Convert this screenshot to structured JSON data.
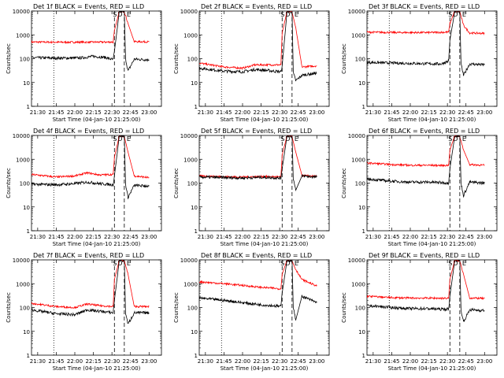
{
  "chart_data": [
    {
      "type": "line",
      "title": "Det 1f BLACK = Events, RED = LLD",
      "xlabel": "Start Time (04-Jan-10 21:25:00)",
      "ylabel": "Counts/sec",
      "yscale": "log",
      "ylim": [
        1,
        10000
      ],
      "x_ticks": [
        "21:30",
        "21:45",
        "22:00",
        "22:15",
        "22:30",
        "22:45",
        "23:00"
      ],
      "y_ticks": [
        "1",
        "10",
        "100",
        "1000",
        "10000"
      ],
      "grid": false,
      "markers": {
        "dotted_time": "21:43",
        "dashed_times": [
          "22:32",
          "22:40"
        ],
        "letters": [
          "S",
          "D",
          "E"
        ]
      },
      "series": [
        {
          "name": "Events",
          "color": "#000000",
          "x": [
            "21:25",
            "21:50",
            "22:05",
            "22:15",
            "22:25",
            "22:31",
            "22:32",
            "22:36",
            "22:40",
            "22:41",
            "22:43",
            "22:48",
            "23:00"
          ],
          "y": [
            110,
            105,
            108,
            125,
            112,
            90,
            200,
            10000,
            9000,
            100,
            30,
            95,
            90
          ]
        },
        {
          "name": "LLD",
          "color": "#ff0000",
          "x": [
            "21:25",
            "21:50",
            "22:15",
            "22:31",
            "22:32",
            "22:36",
            "22:40",
            "22:43",
            "22:48",
            "23:00"
          ],
          "y": [
            500,
            490,
            495,
            500,
            1500,
            10000,
            9500,
            3000,
            520,
            510
          ]
        }
      ]
    },
    {
      "type": "line",
      "title": "Det 2f BLACK = Events, RED = LLD",
      "xlabel": "Start Time (04-Jan-10 21:25:00)",
      "ylabel": "Counts/sec",
      "yscale": "log",
      "ylim": [
        1,
        10000
      ],
      "x_ticks": [
        "21:30",
        "21:45",
        "22:00",
        "22:15",
        "22:30",
        "22:45",
        "23:00"
      ],
      "y_ticks": [
        "1",
        "10",
        "100",
        "1000",
        "10000"
      ],
      "grid": false,
      "markers": {
        "dotted_time": "21:43",
        "dashed_times": [
          "22:32",
          "22:40"
        ],
        "letters": [
          "S",
          "D",
          "E"
        ]
      },
      "series": [
        {
          "name": "Events",
          "color": "#000000",
          "x": [
            "21:25",
            "21:45",
            "22:00",
            "22:10",
            "22:20",
            "22:31",
            "22:32",
            "22:36",
            "22:40",
            "22:41",
            "22:43",
            "22:48",
            "23:00"
          ],
          "y": [
            40,
            30,
            28,
            35,
            32,
            28,
            50,
            10000,
            9000,
            25,
            12,
            20,
            25
          ]
        },
        {
          "name": "LLD",
          "color": "#ff0000",
          "x": [
            "21:25",
            "21:45",
            "22:00",
            "22:10",
            "22:20",
            "22:31",
            "22:32",
            "22:36",
            "22:40",
            "22:43",
            "22:48",
            "23:00"
          ],
          "y": [
            65,
            45,
            40,
            55,
            55,
            55,
            1200,
            10000,
            9000,
            2000,
            45,
            50
          ]
        }
      ]
    },
    {
      "type": "line",
      "title": "Det 3f BLACK = Events, RED = LLD",
      "xlabel": "Start Time (04-Jan-10 21:25:00)",
      "ylabel": "Counts/sec",
      "yscale": "log",
      "ylim": [
        1,
        10000
      ],
      "x_ticks": [
        "21:30",
        "21:45",
        "22:00",
        "22:15",
        "22:30",
        "22:45",
        "23:00"
      ],
      "y_ticks": [
        "1",
        "10",
        "100",
        "1000",
        "10000"
      ],
      "grid": false,
      "markers": {
        "dotted_time": "21:43",
        "dashed_times": [
          "22:32",
          "22:40"
        ],
        "letters": [
          "S",
          "D",
          "E"
        ]
      },
      "series": [
        {
          "name": "Events",
          "color": "#000000",
          "x": [
            "21:25",
            "21:50",
            "22:10",
            "22:25",
            "22:31",
            "22:32",
            "22:36",
            "22:40",
            "22:41",
            "22:43",
            "22:48",
            "23:00"
          ],
          "y": [
            70,
            65,
            62,
            60,
            80,
            600,
            10000,
            9000,
            60,
            20,
            60,
            55
          ]
        },
        {
          "name": "LLD",
          "color": "#ff0000",
          "x": [
            "21:25",
            "21:50",
            "22:15",
            "22:31",
            "22:32",
            "22:36",
            "22:40",
            "22:43",
            "22:48",
            "23:00"
          ],
          "y": [
            1300,
            1250,
            1250,
            1300,
            3000,
            10000,
            9500,
            2500,
            1200,
            1150
          ]
        }
      ]
    },
    {
      "type": "line",
      "title": "Det 4f BLACK = Events, RED = LLD",
      "xlabel": "Start Time (04-Jan-10 21:25:00)",
      "ylabel": "Counts/sec",
      "yscale": "log",
      "ylim": [
        1,
        10000
      ],
      "x_ticks": [
        "21:30",
        "21:45",
        "22:00",
        "22:15",
        "22:30",
        "22:45",
        "23:00"
      ],
      "y_ticks": [
        "1",
        "10",
        "100",
        "1000",
        "10000"
      ],
      "grid": false,
      "markers": {
        "dotted_time": "21:43",
        "dashed_times": [
          "22:32",
          "22:40"
        ],
        "letters": [
          "S",
          "D",
          "E"
        ]
      },
      "series": [
        {
          "name": "Events",
          "color": "#000000",
          "x": [
            "21:25",
            "21:45",
            "22:00",
            "22:10",
            "22:20",
            "22:31",
            "22:32",
            "22:36",
            "22:40",
            "22:41",
            "22:43",
            "22:48",
            "23:00"
          ],
          "y": [
            90,
            85,
            95,
            110,
            95,
            85,
            200,
            10000,
            9000,
            90,
            25,
            80,
            75
          ]
        },
        {
          "name": "LLD",
          "color": "#ff0000",
          "x": [
            "21:25",
            "21:45",
            "22:00",
            "22:10",
            "22:20",
            "22:31",
            "22:32",
            "22:36",
            "22:40",
            "22:43",
            "22:48",
            "23:00"
          ],
          "y": [
            230,
            180,
            200,
            270,
            220,
            230,
            1200,
            10000,
            9000,
            2000,
            200,
            170
          ]
        }
      ]
    },
    {
      "type": "line",
      "title": "Det 5f BLACK = Events, RED = LLD",
      "xlabel": "Start Time (04-Jan-10 21:25:00)",
      "ylabel": "Counts/sec",
      "yscale": "log",
      "ylim": [
        1,
        10000
      ],
      "x_ticks": [
        "21:30",
        "21:45",
        "22:00",
        "22:15",
        "22:30",
        "22:45",
        "23:00"
      ],
      "y_ticks": [
        "1",
        "10",
        "100",
        "1000",
        "10000"
      ],
      "grid": false,
      "markers": {
        "dotted_time": "21:43",
        "dashed_times": [
          "22:32",
          "22:40"
        ],
        "letters": [
          "S",
          "D",
          "E"
        ]
      },
      "series": [
        {
          "name": "Events",
          "color": "#000000",
          "x": [
            "21:25",
            "21:45",
            "22:00",
            "22:15",
            "22:25",
            "22:31",
            "22:32",
            "22:36",
            "22:40",
            "22:41",
            "22:43",
            "22:48",
            "23:00"
          ],
          "y": [
            180,
            170,
            165,
            175,
            170,
            160,
            400,
            10000,
            9000,
            150,
            50,
            200,
            180
          ]
        },
        {
          "name": "LLD",
          "color": "#ff0000",
          "x": [
            "21:25",
            "21:45",
            "22:00",
            "22:15",
            "22:25",
            "22:31",
            "22:32",
            "22:36",
            "22:40",
            "22:43",
            "22:48",
            "23:00"
          ],
          "y": [
            200,
            185,
            180,
            190,
            185,
            180,
            1500,
            10000,
            9000,
            2000,
            210,
            190
          ]
        }
      ]
    },
    {
      "type": "line",
      "title": "Det 6f BLACK = Events, RED = LLD",
      "xlabel": "Start Time (04-Jan-10 21:25:00)",
      "ylabel": "Counts/sec",
      "yscale": "log",
      "ylim": [
        1,
        10000
      ],
      "x_ticks": [
        "21:30",
        "21:45",
        "22:00",
        "22:15",
        "22:30",
        "22:45",
        "23:00"
      ],
      "y_ticks": [
        "1",
        "10",
        "100",
        "1000",
        "10000"
      ],
      "grid": false,
      "markers": {
        "dotted_time": "21:43",
        "dashed_times": [
          "22:32",
          "22:40"
        ],
        "letters": [
          "S",
          "D",
          "E"
        ]
      },
      "series": [
        {
          "name": "Events",
          "color": "#000000",
          "x": [
            "21:25",
            "21:45",
            "22:00",
            "22:15",
            "22:25",
            "22:31",
            "22:32",
            "22:36",
            "22:40",
            "22:41",
            "22:43",
            "22:48",
            "23:00"
          ],
          "y": [
            150,
            120,
            110,
            110,
            105,
            100,
            400,
            10000,
            9000,
            100,
            30,
            110,
            100
          ]
        },
        {
          "name": "LLD",
          "color": "#ff0000",
          "x": [
            "21:25",
            "21:45",
            "22:00",
            "22:15",
            "22:25",
            "22:31",
            "22:32",
            "22:36",
            "22:40",
            "22:43",
            "22:48",
            "23:00"
          ],
          "y": [
            700,
            600,
            560,
            560,
            550,
            560,
            2500,
            10000,
            9000,
            2500,
            600,
            560
          ]
        }
      ]
    },
    {
      "type": "line",
      "title": "Det 7f BLACK = Events, RED = LLD",
      "xlabel": "Start Time (04-Jan-10 21:25:00)",
      "ylabel": "Counts/sec",
      "yscale": "log",
      "ylim": [
        1,
        10000
      ],
      "x_ticks": [
        "21:30",
        "21:45",
        "22:00",
        "22:15",
        "22:30",
        "22:45",
        "23:00"
      ],
      "y_ticks": [
        "1",
        "10",
        "100",
        "1000",
        "10000"
      ],
      "grid": false,
      "markers": {
        "dotted_time": "21:43",
        "dashed_times": [
          "22:32",
          "22:40"
        ],
        "letters": [
          "S",
          "D",
          "E"
        ]
      },
      "series": [
        {
          "name": "Events",
          "color": "#000000",
          "x": [
            "21:25",
            "21:45",
            "22:00",
            "22:10",
            "22:20",
            "22:31",
            "22:32",
            "22:36",
            "22:40",
            "22:41",
            "22:43",
            "22:48",
            "23:00"
          ],
          "y": [
            80,
            55,
            50,
            80,
            70,
            60,
            200,
            10000,
            9000,
            60,
            20,
            60,
            60
          ]
        },
        {
          "name": "LLD",
          "color": "#ff0000",
          "x": [
            "21:25",
            "21:45",
            "22:00",
            "22:10",
            "22:20",
            "22:31",
            "22:32",
            "22:36",
            "22:40",
            "22:43",
            "22:48",
            "23:00"
          ],
          "y": [
            150,
            110,
            100,
            140,
            120,
            110,
            1500,
            10000,
            9000,
            2500,
            110,
            110
          ]
        }
      ]
    },
    {
      "type": "line",
      "title": "Det 8f BLACK = Events, RED = LLD",
      "xlabel": "Start Time (04-Jan-10 21:25:00)",
      "ylabel": "Counts/sec",
      "yscale": "log",
      "ylim": [
        1,
        10000
      ],
      "x_ticks": [
        "21:30",
        "21:45",
        "22:00",
        "22:15",
        "22:30",
        "22:45",
        "23:00"
      ],
      "y_ticks": [
        "1",
        "10",
        "100",
        "1000",
        "10000"
      ],
      "grid": false,
      "markers": {
        "dotted_time": "21:43",
        "dashed_times": [
          "22:32",
          "22:40"
        ],
        "letters": [
          "S",
          "D",
          "E"
        ]
      },
      "series": [
        {
          "name": "Events",
          "color": "#000000",
          "x": [
            "21:25",
            "21:45",
            "22:00",
            "22:15",
            "22:25",
            "22:31",
            "22:32",
            "22:36",
            "22:40",
            "22:41",
            "22:43",
            "22:48",
            "23:00"
          ],
          "y": [
            250,
            200,
            160,
            130,
            120,
            110,
            400,
            10000,
            9000,
            100,
            30,
            300,
            160
          ]
        },
        {
          "name": "LLD",
          "color": "#ff0000",
          "x": [
            "21:25",
            "21:45",
            "22:00",
            "22:15",
            "22:25",
            "22:31",
            "22:32",
            "22:36",
            "22:40",
            "22:43",
            "22:48",
            "23:00"
          ],
          "y": [
            1200,
            1000,
            850,
            700,
            650,
            600,
            2500,
            10000,
            9000,
            4000,
            1500,
            800
          ]
        }
      ]
    },
    {
      "type": "line",
      "title": "Det 9f BLACK = Events, RED = LLD",
      "xlabel": "Start Time (04-Jan-10 21:25:00)",
      "ylabel": "Counts/sec",
      "yscale": "log",
      "ylim": [
        1,
        10000
      ],
      "x_ticks": [
        "21:30",
        "21:45",
        "22:00",
        "22:15",
        "22:30",
        "22:45",
        "23:00"
      ],
      "y_ticks": [
        "1",
        "10",
        "100",
        "1000",
        "10000"
      ],
      "grid": false,
      "markers": {
        "dotted_time": "21:43",
        "dashed_times": [
          "22:32",
          "22:40"
        ],
        "letters": [
          "S",
          "D",
          "E"
        ]
      },
      "series": [
        {
          "name": "Events",
          "color": "#000000",
          "x": [
            "21:25",
            "21:45",
            "22:00",
            "22:15",
            "22:25",
            "22:31",
            "22:32",
            "22:36",
            "22:40",
            "22:41",
            "22:43",
            "22:48",
            "23:00"
          ],
          "y": [
            120,
            100,
            90,
            90,
            85,
            85,
            300,
            10000,
            9000,
            80,
            25,
            80,
            75
          ]
        },
        {
          "name": "LLD",
          "color": "#ff0000",
          "x": [
            "21:25",
            "21:45",
            "22:00",
            "22:15",
            "22:25",
            "22:31",
            "22:32",
            "22:36",
            "22:40",
            "22:43",
            "22:48",
            "23:00"
          ],
          "y": [
            300,
            260,
            250,
            250,
            245,
            245,
            1500,
            10000,
            9000,
            2500,
            250,
            240
          ]
        }
      ]
    }
  ]
}
